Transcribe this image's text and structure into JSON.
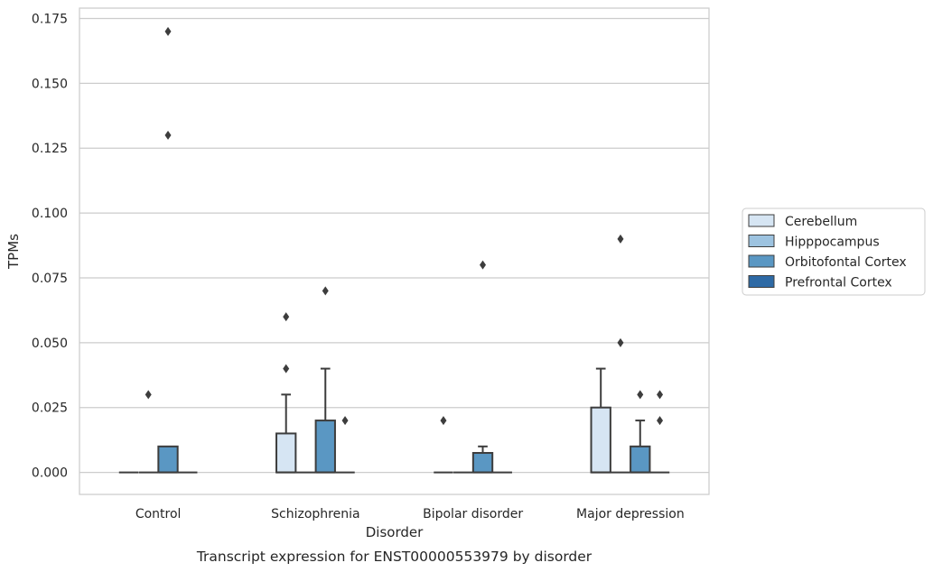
{
  "chart_data": {
    "type": "box",
    "caption": "Transcript expression for ENST00000553979 by disorder",
    "xlabel": "Disorder",
    "ylabel": "TPMs",
    "ylim": [
      -0.0085,
      0.179
    ],
    "yticks": [
      0.0,
      0.025,
      0.05,
      0.075,
      0.1,
      0.125,
      0.15,
      0.175
    ],
    "ytick_labels": [
      "0.000",
      "0.025",
      "0.050",
      "0.075",
      "0.100",
      "0.125",
      "0.150",
      "0.175"
    ],
    "grid": true,
    "legend_position": "right",
    "categories": [
      "Control",
      "Schizophrenia",
      "Bipolar disorder",
      "Major depression"
    ],
    "series": [
      {
        "name": "Cerebellum",
        "color": "#d6e5f3",
        "boxes": [
          {
            "q1": 0,
            "median": 0,
            "q3": 0,
            "whisker_low": 0,
            "whisker_high": 0,
            "outliers": []
          },
          {
            "q1": 0,
            "median": 0,
            "q3": 0.015,
            "whisker_low": 0,
            "whisker_high": 0.03,
            "outliers": [
              0.04,
              0.06
            ]
          },
          {
            "q1": 0,
            "median": 0,
            "q3": 0,
            "whisker_low": 0,
            "whisker_high": 0,
            "outliers": [
              0.02
            ]
          },
          {
            "q1": 0,
            "median": 0,
            "q3": 0.025,
            "whisker_low": 0,
            "whisker_high": 0.04,
            "outliers": []
          }
        ]
      },
      {
        "name": "Hipppocampus",
        "color": "#9dc3e0",
        "boxes": [
          {
            "q1": 0,
            "median": 0,
            "q3": 0,
            "whisker_low": 0,
            "whisker_high": 0,
            "outliers": [
              0.03
            ]
          },
          {
            "q1": 0,
            "median": 0,
            "q3": 0,
            "whisker_low": 0,
            "whisker_high": 0,
            "outliers": []
          },
          {
            "q1": 0,
            "median": 0,
            "q3": 0,
            "whisker_low": 0,
            "whisker_high": 0,
            "outliers": []
          },
          {
            "q1": 0,
            "median": 0,
            "q3": 0,
            "whisker_low": 0,
            "whisker_high": 0,
            "outliers": [
              0.05,
              0.09
            ]
          }
        ]
      },
      {
        "name": "Orbitofontal Cortex",
        "color": "#5a97c3",
        "boxes": [
          {
            "q1": 0,
            "median": 0,
            "q3": 0.01,
            "whisker_low": 0,
            "whisker_high": 0.01,
            "outliers": [
              0.13,
              0.17
            ]
          },
          {
            "q1": 0,
            "median": 0,
            "q3": 0.02,
            "whisker_low": 0,
            "whisker_high": 0.04,
            "outliers": [
              0.07
            ]
          },
          {
            "q1": 0,
            "median": 0,
            "q3": 0.0075,
            "whisker_low": 0,
            "whisker_high": 0.01,
            "outliers": [
              0.08
            ]
          },
          {
            "q1": 0,
            "median": 0,
            "q3": 0.01,
            "whisker_low": 0,
            "whisker_high": 0.02,
            "outliers": [
              0.03
            ]
          }
        ]
      },
      {
        "name": "Prefrontal Cortex",
        "color": "#2e6aa5",
        "boxes": [
          {
            "q1": 0,
            "median": 0,
            "q3": 0,
            "whisker_low": 0,
            "whisker_high": 0,
            "outliers": []
          },
          {
            "q1": 0,
            "median": 0,
            "q3": 0,
            "whisker_low": 0,
            "whisker_high": 0,
            "outliers": [
              0.02
            ]
          },
          {
            "q1": 0,
            "median": 0,
            "q3": 0,
            "whisker_low": 0,
            "whisker_high": 0,
            "outliers": []
          },
          {
            "q1": 0,
            "median": 0,
            "q3": 0,
            "whisker_low": 0,
            "whisker_high": 0,
            "outliers": [
              0.02,
              0.03
            ]
          }
        ]
      }
    ]
  }
}
